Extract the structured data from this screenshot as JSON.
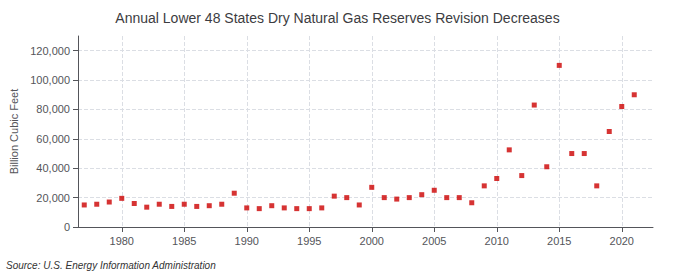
{
  "chart_data": {
    "type": "scatter",
    "title": "Annual Lower 48 States Dry Natural Gas Reserves Revision Decreases",
    "ylabel": "Billion Cubic Feet",
    "source": "Source: U.S. Energy Information Administration",
    "x": [
      1977,
      1978,
      1979,
      1980,
      1981,
      1982,
      1983,
      1984,
      1985,
      1986,
      1987,
      1988,
      1989,
      1990,
      1991,
      1992,
      1993,
      1994,
      1995,
      1996,
      1997,
      1998,
      1999,
      2000,
      2001,
      2002,
      2003,
      2004,
      2005,
      2006,
      2007,
      2008,
      2009,
      2010,
      2011,
      2012,
      2013,
      2014,
      2015,
      2016,
      2017,
      2018,
      2019,
      2020,
      2021
    ],
    "values": [
      15000,
      15500,
      17000,
      19500,
      16000,
      13500,
      15500,
      14000,
      15500,
      14000,
      14500,
      15500,
      23000,
      13000,
      12500,
      14500,
      13000,
      12500,
      12500,
      13000,
      21000,
      20000,
      15000,
      27000,
      20000,
      19000,
      20000,
      22000,
      25000,
      20000,
      20000,
      16500,
      28000,
      33000,
      52500,
      35000,
      83000,
      41000,
      110000,
      50000,
      50000,
      28000,
      65000,
      82000,
      90000
    ],
    "color": "#cc0000",
    "marker": "square",
    "xlim": [
      1976.5,
      2022.5
    ],
    "xticks": [
      1980,
      1985,
      1990,
      1995,
      2000,
      2005,
      2010,
      2015,
      2020
    ],
    "ylim": [
      0,
      130000
    ],
    "yticks": [
      0,
      {
        "value": 20000,
        "label": "20,000"
      },
      {
        "value": 40000,
        "label": "40,000"
      },
      {
        "value": 60000,
        "label": "60,000"
      },
      {
        "value": 80000,
        "label": "80,000"
      },
      {
        "value": 100000,
        "label": "100,000"
      },
      {
        "value": 120000,
        "label": "120,000"
      }
    ],
    "grid": true
  }
}
